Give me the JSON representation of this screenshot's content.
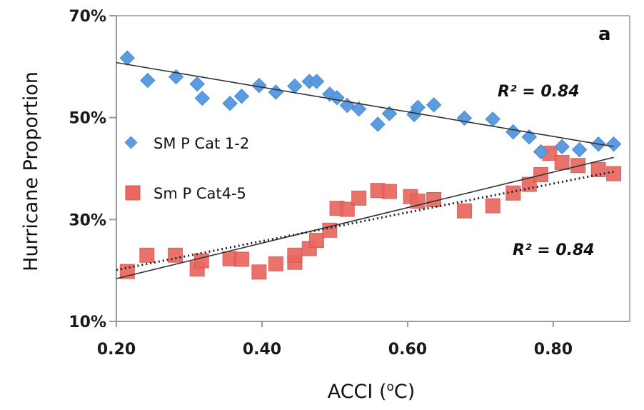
{
  "chart_data": {
    "type": "scatter",
    "panel_label": "a",
    "xlabel": "ACCI (oC)",
    "xlabel_main": "ACCI (",
    "xlabel_sup": "o",
    "xlabel_end": "C)",
    "ylabel": "Hurricane Proportion",
    "xlim": [
      0.2,
      0.905
    ],
    "ylim": [
      10,
      70
    ],
    "x_ticks": [
      0.2,
      0.4,
      0.6,
      0.8
    ],
    "x_tick_labels": [
      "0.20",
      "0.40",
      "0.60",
      "0.80"
    ],
    "y_ticks": [
      10,
      30,
      50,
      70
    ],
    "y_tick_labels": [
      "10%",
      "30%",
      "50%",
      "70%"
    ],
    "grid": false,
    "legend_position": "left-middle",
    "series": [
      {
        "name": "SM P Cat 1-2",
        "marker": "diamond",
        "color": "#5b9be0",
        "x": [
          0.215,
          0.243,
          0.282,
          0.311,
          0.318,
          0.356,
          0.372,
          0.396,
          0.419,
          0.445,
          0.465,
          0.475,
          0.493,
          0.503,
          0.517,
          0.533,
          0.559,
          0.575,
          0.609,
          0.614,
          0.636,
          0.678,
          0.717,
          0.745,
          0.767,
          0.783,
          0.812,
          0.836,
          0.862,
          0.883
        ],
        "y": [
          61.7,
          57.3,
          58.0,
          56.6,
          53.8,
          52.8,
          54.2,
          56.3,
          55.0,
          56.2,
          57.1,
          57.1,
          54.6,
          53.9,
          52.4,
          51.7,
          48.7,
          50.8,
          50.6,
          52.0,
          52.5,
          49.9,
          49.7,
          47.2,
          46.2,
          43.3,
          44.3,
          43.7,
          44.8,
          44.8
        ],
        "trend": {
          "style": "solid",
          "x": [
            0.2,
            0.883
          ],
          "y": [
            60.8,
            44.3
          ]
        },
        "r2_label": "R² = 0.84"
      },
      {
        "name": "Sm P Cat4-5",
        "marker": "square",
        "color": "#e8685f",
        "x": [
          0.215,
          0.242,
          0.281,
          0.311,
          0.317,
          0.356,
          0.372,
          0.396,
          0.419,
          0.445,
          0.445,
          0.465,
          0.475,
          0.493,
          0.503,
          0.517,
          0.533,
          0.559,
          0.575,
          0.604,
          0.614,
          0.636,
          0.678,
          0.717,
          0.745,
          0.767,
          0.783,
          0.795,
          0.812,
          0.834,
          0.862,
          0.883
        ],
        "y": [
          19.8,
          23.0,
          23.0,
          20.3,
          21.9,
          22.3,
          22.2,
          19.7,
          21.3,
          21.6,
          23.0,
          24.3,
          25.9,
          27.9,
          32.2,
          32.0,
          34.2,
          35.7,
          35.5,
          34.5,
          33.6,
          33.9,
          31.7,
          32.7,
          35.2,
          36.9,
          38.8,
          43.0,
          41.2,
          40.6,
          39.8,
          39.0
        ],
        "trend": {
          "style": "solid",
          "x": [
            0.2,
            0.883
          ],
          "y": [
            18.4,
            42.2
          ]
        },
        "trend2": {
          "style": "dotted",
          "x": [
            0.2,
            0.883
          ],
          "y": [
            20.1,
            39.4
          ]
        },
        "r2_label": "R² = 0.84"
      }
    ]
  }
}
